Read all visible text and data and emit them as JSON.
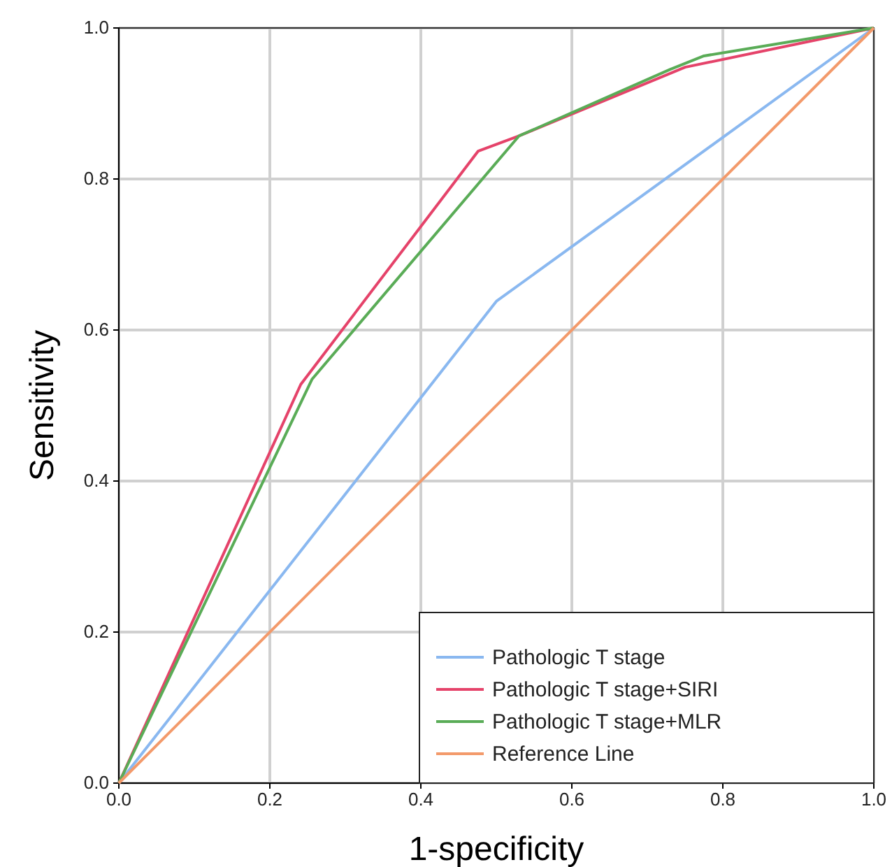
{
  "chart_data": {
    "type": "line",
    "xlabel": "1-specificity",
    "ylabel": "Sensitivity",
    "xlim": [
      0,
      1
    ],
    "ylim": [
      0,
      1
    ],
    "xticks": [
      {
        "value": 0,
        "label": "0.0"
      },
      {
        "value": 0.2,
        "label": "0.2"
      },
      {
        "value": 0.4,
        "label": "0.4"
      },
      {
        "value": 0.6,
        "label": "0.6"
      },
      {
        "value": 0.8,
        "label": "0.8"
      },
      {
        "value": 1,
        "label": "1.0"
      }
    ],
    "yticks": [
      {
        "value": 0,
        "label": "0.0"
      },
      {
        "value": 0.2,
        "label": "0.2"
      },
      {
        "value": 0.4,
        "label": "0.4"
      },
      {
        "value": 0.6,
        "label": "0.6"
      },
      {
        "value": 0.8,
        "label": "0.8"
      },
      {
        "value": 1,
        "label": "1.0"
      }
    ],
    "grid": true,
    "legend": "bottom right",
    "marker": "none",
    "line_style": "solid",
    "series": [
      {
        "name": "Pathologic T stage",
        "color": "#8ab8f0",
        "x": [
          0,
          0.5,
          1
        ],
        "values": [
          0,
          0.638,
          1
        ]
      },
      {
        "name": "Pathologic T stage+SIRI",
        "color": "#e5436a",
        "x": [
          0,
          0.241,
          0.476,
          0.53,
          0.75,
          1
        ],
        "values": [
          0,
          0.528,
          0.837,
          0.857,
          0.948,
          1
        ]
      },
      {
        "name": "Pathologic T stage+MLR",
        "color": "#5aac57",
        "x": [
          0,
          0.256,
          0.53,
          0.73,
          0.775,
          1
        ],
        "values": [
          0,
          0.535,
          0.857,
          0.945,
          0.963,
          1
        ]
      },
      {
        "name": "Reference Line",
        "color": "#f39a6b",
        "x": [
          0,
          1
        ],
        "values": [
          0,
          1
        ]
      }
    ]
  }
}
